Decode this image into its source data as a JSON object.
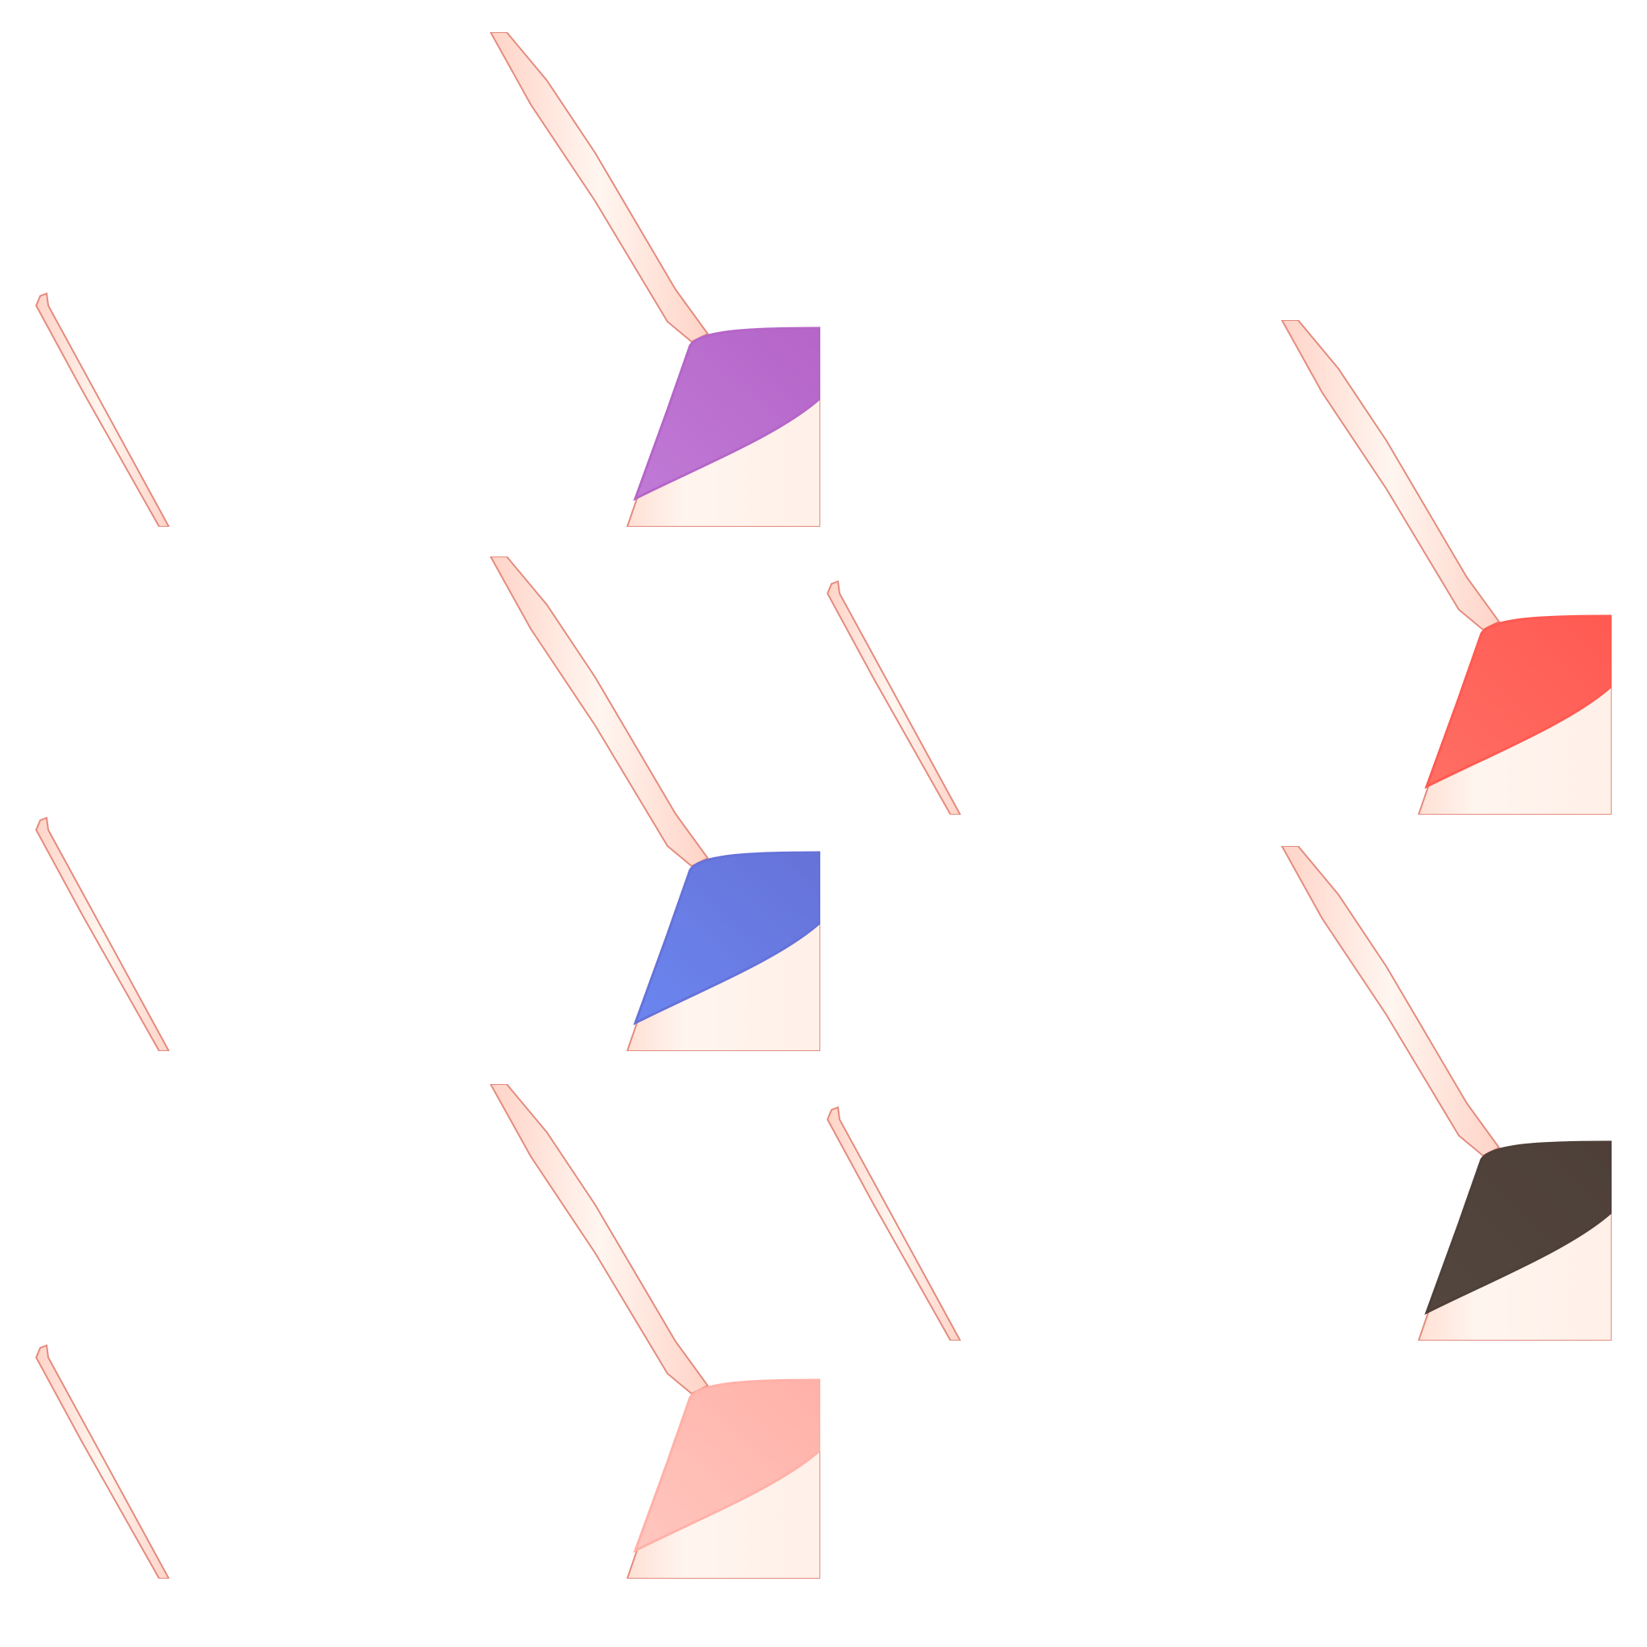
{
  "sheet": {
    "variants": [
      {
        "name": "purple",
        "color": "#b565c8",
        "color_light": "#c07ad6"
      },
      {
        "name": "red",
        "color": "#ff5a52",
        "color_light": "#ff6e64"
      },
      {
        "name": "blue",
        "color": "#6672d8",
        "color_light": "#6b86f0"
      },
      {
        "name": "dark-brown",
        "color": "#4e4038",
        "color_light": "#52463e"
      },
      {
        "name": "pink",
        "color": "#ffb1a8",
        "color_light": "#ffc6bf"
      }
    ],
    "skin": {
      "fill": "#fff3ec",
      "shade": "#ffd9cc",
      "outline": "#e48a7d"
    }
  }
}
